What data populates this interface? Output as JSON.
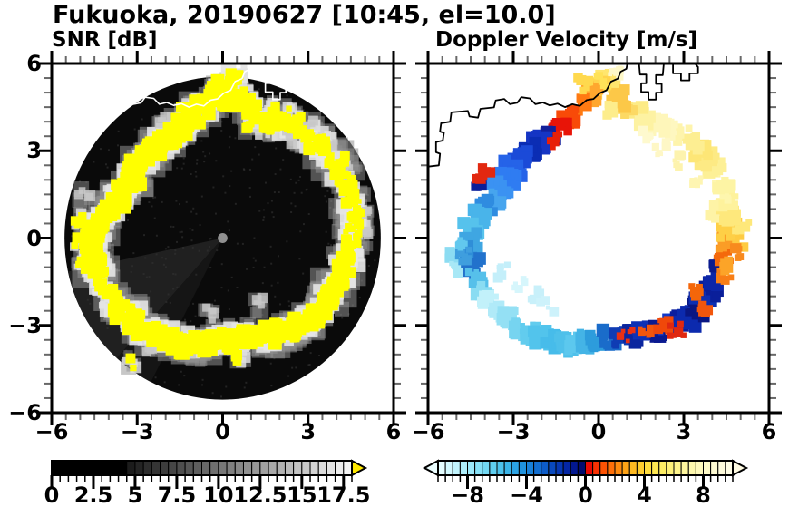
{
  "title": "Fukuoka, 20190627 [10:45, el=10.0]",
  "panels": {
    "snr": {
      "title": "SNR [dB]"
    },
    "velocity": {
      "title": "Doppler Velocity [m/s]"
    }
  },
  "axes": {
    "range": [
      -6,
      6
    ],
    "minor_step": 0.5,
    "tick_values": [
      -6,
      -3,
      0,
      3,
      6
    ],
    "x_tick_labels": [
      "−6",
      "−3",
      "0",
      "3",
      "6"
    ],
    "y_tick_labels": [
      "6",
      "3",
      "0",
      "−3",
      "−6"
    ]
  },
  "colorbars": {
    "snr": {
      "range": [
        0,
        18
      ],
      "cell_step": 0.5,
      "tick_values": [
        0,
        2.5,
        5,
        7.5,
        10,
        12.5,
        15,
        17.5
      ],
      "tick_labels": [
        "0",
        "2.5",
        "5",
        "7.5",
        "10",
        "12.5",
        "15",
        "17.5"
      ],
      "over_color": "#ffe800",
      "cells": [
        "#000000",
        "#000000",
        "#000000",
        "#000000",
        "#000000",
        "#000000",
        "#000000",
        "#000000",
        "#000000",
        "#1c1c1c",
        "#242424",
        "#2d2d2d",
        "#353535",
        "#3d3d3d",
        "#464646",
        "#4e4e4e",
        "#565656",
        "#5e5e5e",
        "#676767",
        "#6f6f6f",
        "#777777",
        "#808080",
        "#888888",
        "#909090",
        "#989898",
        "#a1a1a1",
        "#a9a9a9",
        "#b1b1b1",
        "#bababa",
        "#c2c2c2",
        "#cacaca",
        "#d3d3d3",
        "#dbdbdb",
        "#e3e3e3",
        "#ececec",
        "#f4f4f4"
      ]
    },
    "velocity": {
      "range": [
        -10,
        10
      ],
      "cell_step": 0.5,
      "tick_values": [
        -8,
        -4,
        0,
        4,
        8
      ],
      "tick_labels": [
        "−8",
        "−4",
        "0",
        "4",
        "8"
      ],
      "under_color": "#ecfeff",
      "over_color": "#fffbe2",
      "cells": [
        "#e4fdff",
        "#d2f8fe",
        "#c0f3fc",
        "#adedfa",
        "#9ae7f8",
        "#86e0f6",
        "#72d8f3",
        "#5fcef0",
        "#4cc2ec",
        "#3ab4e8",
        "#2ba3e4",
        "#2092de",
        "#1880d8",
        "#126ed0",
        "#0d5cc8",
        "#0949be",
        "#0637b2",
        "#0426a4",
        "#031890",
        "#020c6e",
        "#e90a02",
        "#f93102",
        "#fd5304",
        "#fe6f08",
        "#fe8a0e",
        "#fea316",
        "#feb921",
        "#fecc2e",
        "#fedc3e",
        "#fee751",
        "#feee64",
        "#fef278",
        "#fef58b",
        "#fef69d",
        "#fef8ad",
        "#fef9bb",
        "#fefac8",
        "#fefbd3",
        "#fefbdc",
        "#fefce4"
      ]
    }
  },
  "chart_data": {
    "type": "heatmap",
    "title": "Fukuoka, 20190627 [10:45, el=10.0]",
    "panels": [
      {
        "name": "SNR [dB]",
        "units": "dB",
        "colorbar_range": [
          0,
          18
        ],
        "over": "yellow",
        "background": "#0a0a0a"
      },
      {
        "name": "Doppler Velocity [m/s]",
        "units": "m/s",
        "colorbar_range": [
          -10,
          10
        ],
        "background": "#ffffff"
      }
    ],
    "x_range_km": [
      -6,
      6
    ],
    "y_range_km": [
      -6,
      6
    ],
    "scan_radius_km": 5.55,
    "center_dot": {
      "x": 0,
      "y": 0,
      "radius_km": 0.17,
      "color": "#909090"
    },
    "shadow_sectors": [
      {
        "az_start": 192,
        "az_end": 228,
        "color": "#222222"
      },
      {
        "az_start": 228,
        "az_end": 244,
        "color": "#161616"
      }
    ],
    "front_ring_format": "[x_km, y_km, doppler_color, doppler_velocity_mps, snr_class(2=strong band,1=patch,0=faint)]",
    "front_ring": [
      [
        0.35,
        5.5,
        "#ffe66e",
        5.5,
        1
      ],
      [
        0.05,
        5.15,
        "#ffd44c",
        4.5,
        2
      ],
      [
        -0.3,
        4.9,
        "#ffa72e",
        3.2,
        2
      ],
      [
        -0.65,
        4.55,
        "#ff7a12",
        2.4,
        2
      ],
      [
        -1.0,
        4.2,
        "#f84a08",
        1.6,
        2
      ],
      [
        -1.35,
        3.85,
        "#e81408",
        0.6,
        2
      ],
      [
        -1.7,
        3.55,
        "#13209a",
        -0.9,
        2
      ],
      [
        -2.05,
        3.3,
        "#1535c4",
        -1.6,
        2
      ],
      [
        -2.4,
        3.05,
        "#0b2db4",
        -1.8,
        2
      ],
      [
        -2.75,
        2.75,
        "#1b4ad8",
        -2.2,
        2
      ],
      [
        -3.0,
        2.4,
        "#2563e8",
        -2.6,
        2
      ],
      [
        -3.2,
        2.05,
        "#2f7cf2",
        -3.0,
        2
      ],
      [
        -3.45,
        1.7,
        "#3b92f2",
        -3.5,
        2
      ],
      [
        -3.7,
        1.35,
        "#47a5ee",
        -4.0,
        2
      ],
      [
        -4.0,
        1.05,
        "#2f8ce0",
        -3.2,
        2
      ],
      [
        -4.25,
        0.7,
        "#49b4ea",
        -4.4,
        2
      ],
      [
        -4.45,
        0.3,
        "#56c2ec",
        -4.8,
        2
      ],
      [
        -4.55,
        -0.1,
        "#3fa6e2",
        -4.2,
        2
      ],
      [
        -4.55,
        -0.55,
        "#2f8ed8",
        -3.6,
        2
      ],
      [
        -4.45,
        -0.95,
        "#2272cc",
        -3.0,
        2
      ],
      [
        -4.3,
        -1.35,
        "#56c0ea",
        -4.8,
        1
      ],
      [
        -4.1,
        -1.75,
        "#8adcf2",
        -6.2,
        1
      ],
      [
        -3.85,
        -2.15,
        "#c2f1fa",
        -7.8,
        1
      ],
      [
        -3.5,
        -2.5,
        "#b0eaf8",
        -7.2,
        2
      ],
      [
        -3.15,
        -2.8,
        "#94e0f4",
        -6.6,
        2
      ],
      [
        -2.8,
        -3.05,
        "#76d4f0",
        -6.0,
        2
      ],
      [
        -2.4,
        -3.25,
        "#62ccee",
        -5.6,
        2
      ],
      [
        -2.0,
        -3.45,
        "#52c4ec",
        -5.2,
        2
      ],
      [
        -1.6,
        -3.55,
        "#47bcea",
        -5.0,
        2
      ],
      [
        -1.2,
        -3.65,
        "#4fc0ea",
        -5.1,
        2
      ],
      [
        -0.8,
        -3.6,
        "#5cc8ee",
        -5.4,
        2
      ],
      [
        -0.4,
        -3.55,
        "#44b4e6",
        -4.7,
        2
      ],
      [
        0.0,
        -3.5,
        "#2d9cdc",
        -4.0,
        2
      ],
      [
        0.4,
        -3.45,
        "#1a6cca",
        -2.8,
        2
      ],
      [
        0.8,
        -3.4,
        "#0f3cb4",
        -1.9,
        2
      ],
      [
        1.2,
        -3.35,
        "#0a259e",
        -1.2,
        2
      ],
      [
        1.6,
        -3.3,
        "#0d31b6",
        -1.5,
        2
      ],
      [
        2.0,
        -3.2,
        "#0a1a90",
        -0.8,
        2
      ],
      [
        2.4,
        -3.05,
        "#1138c8",
        -1.7,
        2
      ],
      [
        2.8,
        -2.9,
        "#0a1e9e",
        -1.0,
        2
      ],
      [
        3.15,
        -2.75,
        "#0c2aae",
        -1.3,
        2
      ],
      [
        3.45,
        -2.45,
        "#091682",
        -0.6,
        2
      ],
      [
        3.7,
        -2.1,
        "#0d2fb2",
        -1.4,
        2
      ],
      [
        3.9,
        -1.75,
        "#0a1f9a",
        -1.0,
        2
      ],
      [
        4.1,
        -1.35,
        "#0c26a8",
        -1.2,
        2
      ],
      [
        4.25,
        -0.95,
        "#0a1a8e",
        -0.8,
        1
      ],
      [
        4.4,
        -0.55,
        "#f4690c",
        2.1,
        1
      ],
      [
        4.5,
        -0.15,
        "#fb9d26",
        3.4,
        1
      ],
      [
        4.58,
        0.3,
        "#fecf46",
        4.6,
        1
      ],
      [
        4.6,
        0.75,
        "#fee87c",
        5.9,
        1
      ],
      [
        4.55,
        1.2,
        "#fef29c",
        6.9,
        1
      ],
      [
        4.45,
        1.6,
        "#fef6ae",
        7.6,
        1
      ],
      [
        4.3,
        2.0,
        "#fdf4a4",
        7.3,
        1
      ],
      [
        4.1,
        2.4,
        "#fdf096",
        7.0,
        1
      ],
      [
        3.85,
        2.75,
        "#fdea84",
        6.6,
        1
      ],
      [
        3.55,
        3.05,
        "#fde676",
        6.3,
        1
      ],
      [
        3.25,
        3.3,
        "#fdee92",
        6.9,
        1
      ],
      [
        2.9,
        3.55,
        "#fef4ac",
        7.4,
        1
      ],
      [
        2.5,
        3.75,
        "#fef7c0",
        8.1,
        1
      ],
      [
        2.1,
        3.95,
        "#fef6ba",
        7.9,
        1
      ],
      [
        1.7,
        4.1,
        "#fdf2a2",
        7.1,
        1
      ],
      [
        1.3,
        4.3,
        "#fdeb86",
        6.5,
        1
      ],
      [
        0.95,
        4.5,
        "#fcd964",
        5.1,
        1
      ],
      [
        0.65,
        4.8,
        "#fcc848",
        4.3,
        2
      ]
    ],
    "velocity_extra_format": "[x_km, y_km, color, velocity_mps]",
    "velocity_extra": [
      [
        -4.25,
        1.95,
        "#0a1f9a",
        -0.9
      ],
      [
        -4.05,
        2.2,
        "#e22810",
        0.8
      ],
      [
        -1.5,
        3.35,
        "#e82008",
        0.5
      ],
      [
        3.35,
        -1.75,
        "#f4660a",
        2.2
      ],
      [
        3.7,
        -2.4,
        "#f2560c",
        1.8
      ],
      [
        4.45,
        -1.35,
        "#f87e16",
        2.7
      ],
      [
        4.55,
        -0.95,
        "#fca428",
        3.6
      ],
      [
        1.0,
        -3.3,
        "#e83014",
        0.4
      ],
      [
        1.65,
        -3.2,
        "#f2560c",
        1.8
      ],
      [
        2.3,
        -2.95,
        "#f0480a",
        1.5
      ],
      [
        2.75,
        -3.15,
        "#e02810",
        0.5
      ],
      [
        -2.3,
        -2.0,
        "#c8f0fa",
        -7.9
      ],
      [
        -2.8,
        -1.6,
        "#d6f6fc",
        -8.6
      ],
      [
        -3.3,
        -1.15,
        "#c4effa",
        -7.8
      ],
      [
        -1.8,
        -2.35,
        "#cdf2fb",
        -8.1
      ],
      [
        -5.2,
        -0.5,
        "#8cdcf2",
        -6.3
      ],
      [
        -5.0,
        -1.0,
        "#a8e8f6",
        -7.0
      ],
      [
        -4.75,
        -0.6,
        "#3f9ede",
        -3.9
      ],
      [
        -4.85,
        -0.15,
        "#62c8ee",
        -5.5
      ],
      [
        0.15,
        5.35,
        "#ffe258",
        4.9
      ],
      [
        -0.55,
        5.3,
        "#ffd94e",
        4.7
      ],
      [
        0.6,
        5.65,
        "#fef8c8",
        8.3
      ],
      [
        2.2,
        3.1,
        "#fef7c6",
        8.2
      ],
      [
        2.85,
        2.65,
        "#fdf3ae",
        7.5
      ],
      [
        1.65,
        3.5,
        "#fef9ce",
        8.6
      ],
      [
        3.5,
        1.9,
        "#fef5b2",
        7.7
      ],
      [
        4.0,
        0.9,
        "#fef3a6",
        7.3
      ],
      [
        0.3,
        4.45,
        "#fded8c",
        6.7
      ],
      [
        5.0,
        -0.1,
        "#fecb42",
        4.5
      ],
      [
        5.05,
        0.35,
        "#fee87a",
        5.9
      ],
      [
        4.8,
        -0.5,
        "#f88a1e",
        3.0
      ]
    ],
    "snr_speck_format": "[x_km, y_km, class(1=yellow patch,0=gray faint)]",
    "snr_specks": [
      [
        -3.2,
        -4.3,
        1
      ],
      [
        0.55,
        -4.1,
        1
      ],
      [
        -0.35,
        -2.6,
        0
      ],
      [
        1.15,
        -2.3,
        0
      ],
      [
        1.75,
        4.5,
        1
      ],
      [
        2.2,
        4.3,
        1
      ],
      [
        2.6,
        4.05,
        1
      ],
      [
        3.1,
        3.8,
        0
      ],
      [
        3.5,
        3.45,
        1
      ],
      [
        3.9,
        3.1,
        0
      ],
      [
        4.2,
        2.65,
        1
      ],
      [
        4.45,
        2.2,
        0
      ],
      [
        1.0,
        3.9,
        1
      ],
      [
        1.5,
        3.75,
        1
      ],
      [
        2.4,
        3.45,
        0
      ],
      [
        0.1,
        4.6,
        1
      ],
      [
        -0.5,
        4.3,
        0
      ],
      [
        4.85,
        0.55,
        1
      ],
      [
        4.9,
        0.0,
        0
      ],
      [
        4.95,
        1.05,
        0
      ],
      [
        2.6,
        -3.3,
        1
      ],
      [
        -1.3,
        4.5,
        1
      ],
      [
        -2.0,
        4.05,
        0
      ],
      [
        -4.85,
        1.4,
        0
      ],
      [
        -5.0,
        0.6,
        1
      ],
      [
        -5.05,
        -0.1,
        1
      ],
      [
        -4.9,
        -0.9,
        1
      ],
      [
        -0.9,
        -4.0,
        0
      ],
      [
        -2.45,
        -3.7,
        0
      ]
    ],
    "coastline_km": [
      [
        [
          -6.05,
          2.45
        ],
        [
          -5.62,
          2.5
        ],
        [
          -5.58,
          2.9
        ],
        [
          -5.72,
          2.95
        ],
        [
          -5.72,
          3.3
        ],
        [
          -5.48,
          3.35
        ],
        [
          -5.44,
          3.62
        ],
        [
          -5.58,
          3.66
        ],
        [
          -5.54,
          3.95
        ],
        [
          -5.22,
          4.0
        ],
        [
          -5.18,
          4.32
        ],
        [
          -4.6,
          4.37
        ],
        [
          -4.54,
          4.18
        ],
        [
          -4.24,
          4.14
        ],
        [
          -4.16,
          4.44
        ],
        [
          -3.68,
          4.49
        ],
        [
          -3.62,
          4.73
        ],
        [
          -3.32,
          4.78
        ],
        [
          -3.12,
          4.6
        ],
        [
          -2.86,
          4.65
        ],
        [
          -2.72,
          4.84
        ],
        [
          -2.42,
          4.8
        ],
        [
          -2.22,
          4.6
        ],
        [
          -1.96,
          4.66
        ],
        [
          -1.72,
          4.56
        ],
        [
          -1.44,
          4.62
        ],
        [
          -1.18,
          4.5
        ],
        [
          -0.92,
          4.6
        ],
        [
          -0.66,
          4.54
        ],
        [
          -0.42,
          4.74
        ],
        [
          -0.18,
          4.78
        ],
        [
          0.04,
          4.98
        ],
        [
          0.28,
          5.08
        ],
        [
          0.44,
          5.38
        ],
        [
          0.68,
          5.48
        ],
        [
          0.78,
          5.72
        ],
        [
          0.98,
          5.82
        ],
        [
          1.02,
          6.05
        ]
      ],
      [
        [
          1.42,
          6.05
        ],
        [
          1.46,
          5.62
        ],
        [
          1.68,
          5.62
        ],
        [
          1.68,
          5.32
        ],
        [
          1.5,
          5.32
        ],
        [
          1.5,
          5.02
        ],
        [
          1.76,
          5.02
        ],
        [
          1.76,
          4.76
        ],
        [
          2.02,
          4.76
        ],
        [
          2.02,
          5.0
        ],
        [
          2.22,
          5.0
        ],
        [
          2.22,
          5.3
        ],
        [
          2.02,
          5.3
        ],
        [
          2.02,
          5.6
        ],
        [
          2.26,
          5.6
        ],
        [
          2.3,
          6.05
        ]
      ],
      [
        [
          2.62,
          6.05
        ],
        [
          2.62,
          5.66
        ],
        [
          2.9,
          5.66
        ],
        [
          2.9,
          5.42
        ],
        [
          3.2,
          5.42
        ],
        [
          3.2,
          5.66
        ],
        [
          3.5,
          5.66
        ],
        [
          3.5,
          5.88
        ],
        [
          3.34,
          6.05
        ]
      ]
    ]
  }
}
